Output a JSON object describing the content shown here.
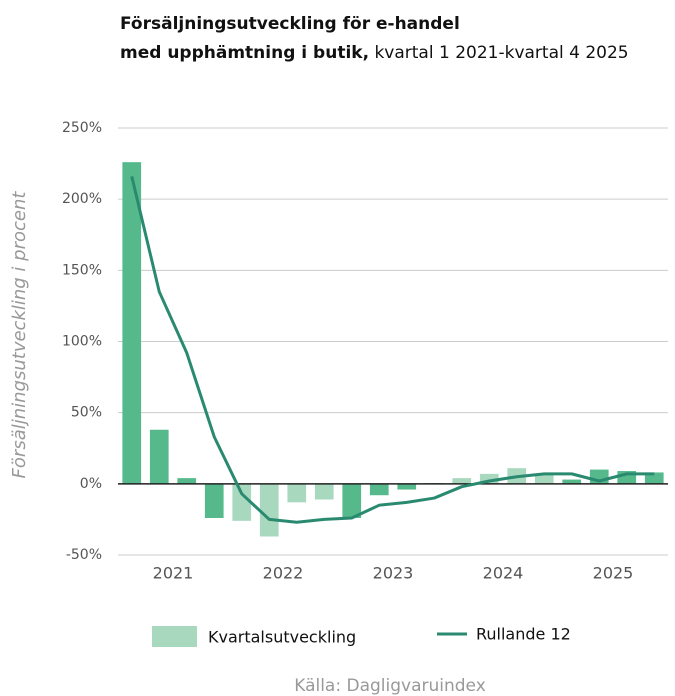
{
  "chart_data": {
    "type": "bar",
    "title": [
      "Försäljningsutveckling för e-handel",
      "med upphämtning i butik,"
    ],
    "subtitle": "kvartal 1 2021-kvartal 4 2025",
    "ylabel": "Försäljningsutveckling i procent",
    "source": "Källa: Dagligvaruindex",
    "categories": [
      "2021",
      null,
      null,
      null,
      "2022",
      null,
      null,
      null,
      "2023",
      null,
      null,
      null,
      "2024",
      null,
      null,
      null,
      "2025",
      null,
      null,
      null
    ],
    "series": [
      {
        "name": "Kvartalsutveckling",
        "type": "bar",
        "color": "#a8d9bf",
        "colors": [
          "#55b98c",
          "#55b98c",
          "#55b98c",
          "#55b98c",
          "#a8d9bf",
          "#a8d9bf",
          "#a8d9bf",
          "#a8d9bf",
          "#55b98c",
          "#55b98c",
          "#55b98c",
          "#55b98c",
          "#a8d9bf",
          "#a8d9bf",
          "#a8d9bf",
          "#a8d9bf",
          "#55b98c",
          "#55b98c",
          "#55b98c",
          "#55b98c"
        ],
        "values": [
          226,
          38,
          4,
          -24,
          -26,
          -37,
          -13,
          -11,
          -24,
          -8,
          -4,
          0.5,
          4,
          7,
          11,
          7,
          3,
          10,
          9,
          8
        ]
      },
      {
        "name": "Rullande 12",
        "type": "line",
        "color": "#2a8a70",
        "values": [
          216,
          135,
          92,
          33,
          -7,
          -25,
          -27,
          -25,
          -24,
          -15,
          -13,
          -10,
          -2,
          2,
          5,
          7,
          7,
          2,
          7,
          7
        ]
      }
    ],
    "ylim": [
      -50,
      250
    ],
    "yticks": [
      {
        "value": -50,
        "label": "-50%"
      },
      {
        "value": 0,
        "label": "0%"
      },
      {
        "value": 50,
        "label": "50%"
      },
      {
        "value": 100,
        "label": "100%"
      },
      {
        "value": 150,
        "label": "150%"
      },
      {
        "value": 200,
        "label": "200%"
      },
      {
        "value": 250,
        "label": "250%"
      }
    ],
    "grid": true
  }
}
